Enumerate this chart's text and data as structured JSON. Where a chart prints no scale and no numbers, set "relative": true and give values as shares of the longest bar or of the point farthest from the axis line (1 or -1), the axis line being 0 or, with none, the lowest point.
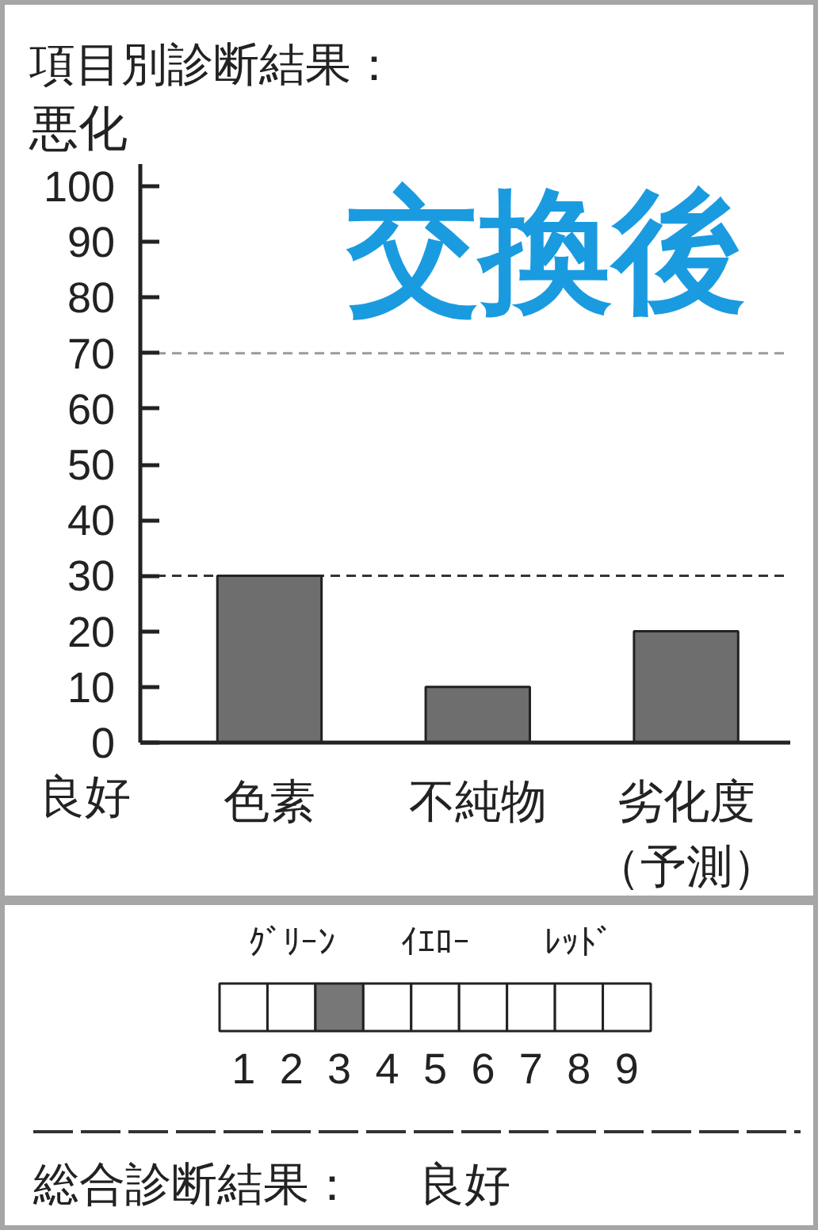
{
  "chart_data": [
    {
      "type": "bar",
      "title": "項目別診断結果：",
      "ylabel": "悪化",
      "categories": [
        "色素",
        "不純物",
        "劣化度（予測）"
      ],
      "values": [
        30,
        10,
        20
      ],
      "color": "#6e6e6e",
      "ylim": [
        0,
        104
      ],
      "yticks": [
        0,
        10,
        20,
        30,
        40,
        50,
        60,
        70,
        80,
        90,
        100
      ],
      "ref_lines": [
        {
          "axis": "y",
          "value": 70,
          "color": "#9a9a9a",
          "line_style": "dashed"
        },
        {
          "axis": "y",
          "value": 30,
          "color": "#333333",
          "line_style": "dashed"
        }
      ],
      "annotations": [
        "良好",
        "交換後"
      ]
    },
    {
      "type": "bar",
      "relative": true,
      "categories": [
        "1",
        "2",
        "3",
        "4",
        "5",
        "6",
        "7",
        "8",
        "9"
      ],
      "values": [
        1,
        1,
        1,
        1,
        1,
        1,
        1,
        1,
        1
      ],
      "colors": [
        "#ffffff",
        "#ffffff",
        "#777777",
        "#ffffff",
        "#ffffff",
        "#ffffff",
        "#ffffff",
        "#ffffff",
        "#ffffff"
      ],
      "annotations": [
        "ｸﾞﾘｰﾝ",
        "ｲｴﾛｰ",
        "ﾚｯﾄﾞ",
        "総合診断結果：",
        "良好"
      ]
    }
  ]
}
